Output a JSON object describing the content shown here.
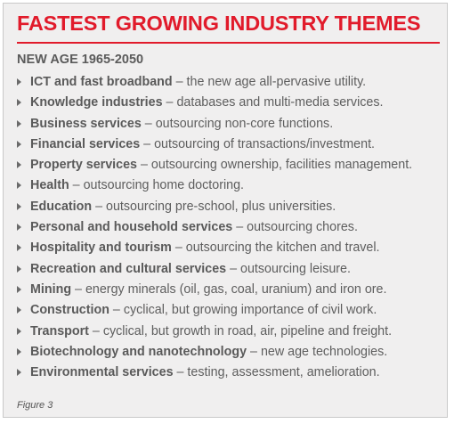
{
  "title": "FASTEST GROWING INDUSTRY THEMES",
  "subtitle": "NEW AGE 1965-2050",
  "items": [
    {
      "term": "ICT and fast broadband",
      "desc": " – the new age all-pervasive utility."
    },
    {
      "term": "Knowledge industries",
      "desc": " – databases and multi-media services."
    },
    {
      "term": "Business services",
      "desc": " – outsourcing non-core functions."
    },
    {
      "term": "Financial services",
      "desc": " – outsourcing of transactions/investment."
    },
    {
      "term": "Property services",
      "desc": " – outsourcing ownership, facilities management."
    },
    {
      "term": "Health",
      "desc": " – outsourcing home doctoring."
    },
    {
      "term": "Education",
      "desc": " – outsourcing pre-school, plus universities."
    },
    {
      "term": "Personal and household services",
      "desc": " – outsourcing chores."
    },
    {
      "term": "Hospitality and tourism",
      "desc": " – outsourcing the kitchen and travel."
    },
    {
      "term": "Recreation and cultural services",
      "desc": " – outsourcing leisure."
    },
    {
      "term": "Mining",
      "desc": " – energy minerals (oil, gas, coal, uranium) and iron ore."
    },
    {
      "term": "Construction",
      "desc": " – cyclical, but growing importance of civil work."
    },
    {
      "term": "Transport",
      "desc": " – cyclical, but growth in road, air, pipeline and freight."
    },
    {
      "term": "Biotechnology and nanotechnology",
      "desc": " – new age technologies."
    },
    {
      "term": "Environmental services",
      "desc": " – testing, assessment, amelioration."
    }
  ],
  "figure_label": "Figure 3",
  "colors": {
    "accent": "#e11b2b",
    "background": "#f0efef",
    "text": "#5e5e5e"
  },
  "icons": {
    "bullet": "triangle-bullet-icon"
  }
}
